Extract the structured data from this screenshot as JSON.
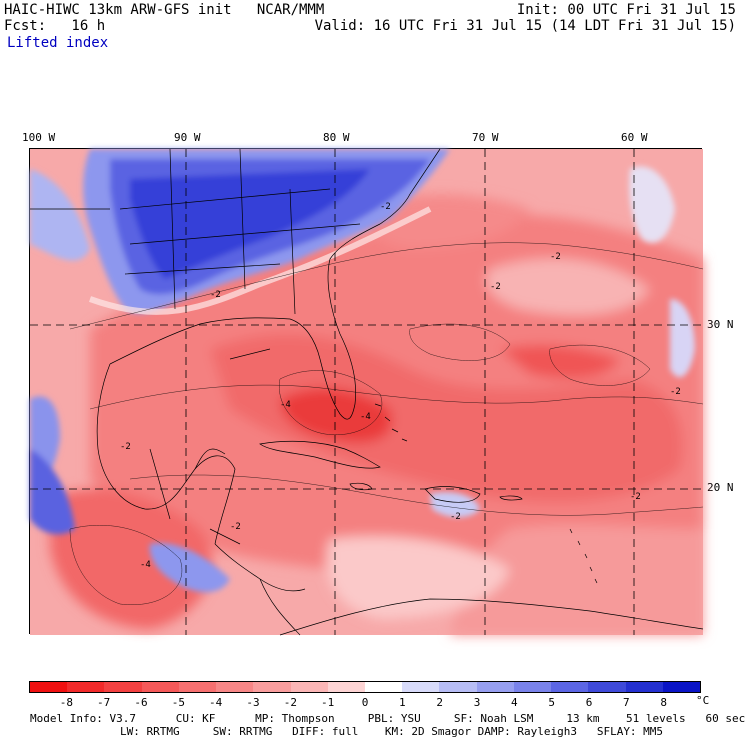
{
  "header": {
    "title": "HAIC-HIWC 13km ARW-GFS init   NCAR/MMM",
    "init": "Init: 00 UTC Fri 31 Jul 15",
    "fcst_label": "Fcst:   16 h",
    "valid": "Valid: 16 UTC Fri 31 Jul 15 (14 LDT Fri 31 Jul 15)",
    "field": "Lifted index"
  },
  "map": {
    "lon_labels": [
      "100 W",
      "90 W",
      "80 W",
      "70 W",
      "60 W"
    ],
    "lat_labels": [
      "30 N",
      "20 N"
    ],
    "contour_labels": [
      "-2",
      "-2",
      "-4",
      "-2",
      "-2",
      "-2",
      "-4",
      "-2",
      "-2",
      "-2",
      "-4",
      "-2"
    ],
    "colors": {
      "deep_negative": "#e8202a",
      "negative": "#f26565",
      "mild_negative": "#f7a4a4",
      "near_zero": "#fbd6d6",
      "positive": "#9aa6f0",
      "deep_positive": "#2a2ed8"
    }
  },
  "colorbar": {
    "ticks": [
      "-8",
      "-7",
      "-6",
      "-5",
      "-4",
      "-3",
      "-2",
      "-1",
      "0",
      "1",
      "2",
      "3",
      "4",
      "5",
      "6",
      "7",
      "8"
    ],
    "unit": "°C",
    "colors": [
      "#f01010",
      "#f22a2a",
      "#f34141",
      "#f55959",
      "#f67070",
      "#f78787",
      "#f99e9e",
      "#fbb6b6",
      "#fdd4d4",
      "#ffffff",
      "#d8dbfa",
      "#b7bdf5",
      "#979ff0",
      "#7a83ea",
      "#5c66e4",
      "#3f4ad9",
      "#2430d0",
      "#0a14c6"
    ]
  },
  "footer": {
    "line1": "Model Info: V3.7      CU: KF      MP: Thompson     PBL: YSU     SF: Noah LSM     13 km    51 levels   60 sec",
    "line2": "LW: RRTMG     SW: RRTMG   DIFF: full    KM: 2D Smagor DAMP: Rayleigh3   SFLAY: MM5"
  }
}
